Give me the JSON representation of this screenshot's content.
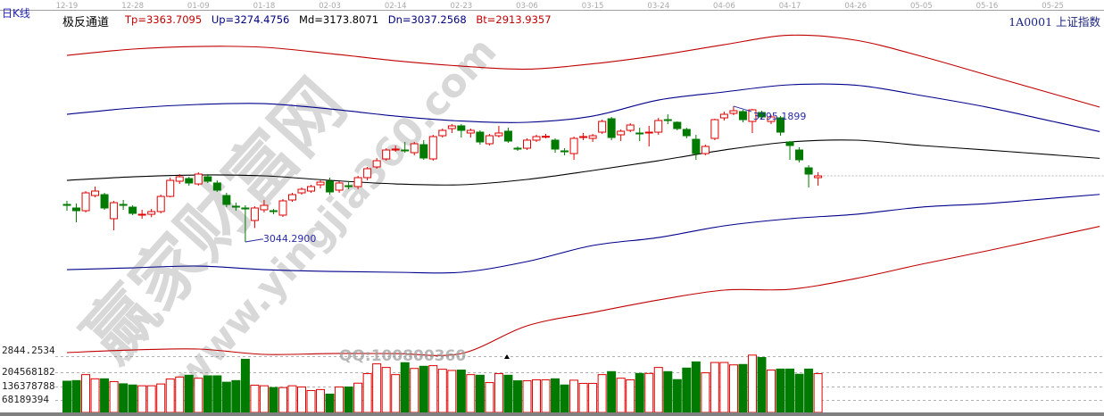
{
  "header": {
    "period": "日K线",
    "indicator_name": "极反通道",
    "indicator_values": [
      {
        "label": "Tp=3363.7095",
        "color": "#c00000"
      },
      {
        "label": "Up=3274.4756",
        "color": "#000080"
      },
      {
        "label": "Md=3173.8071",
        "color": "#000000"
      },
      {
        "label": "Dn=3037.2568",
        "color": "#000080"
      },
      {
        "label": "Bt=2913.9357",
        "color": "#c00000"
      }
    ],
    "symbol": "1A0001  上证指数"
  },
  "axis": {
    "price_bottom_label": "2844.2534",
    "volume_labels": [
      "204568182",
      "136378788",
      "68189394"
    ]
  },
  "watermark": {
    "brand": "赢家财富网",
    "url": "www.yingjia360.com",
    "qq": "QQ:100800360"
  },
  "colors": {
    "up": "#e00000",
    "down": "#007a00",
    "channel_outer": "#c00000",
    "channel_inner": "#00008b",
    "channel_mid": "#000000",
    "annotation": "#2a2aa8"
  },
  "chart_data": {
    "type": "candlestick",
    "title": "",
    "x_tick_labels": [
      "12-19",
      "12-28",
      "01-09",
      "01-18",
      "02-03",
      "02-14",
      "02-23",
      "03-06",
      "03-15",
      "03-24",
      "04-06",
      "04-17",
      "04-26",
      "05-05",
      "05-16",
      "05-25"
    ],
    "x_tick_every_bars": 7,
    "price_range": [
      2836,
      3491
    ],
    "annotations": [
      {
        "label": "3044.2900",
        "type": "low",
        "bar": 19
      },
      {
        "label": "3295.1899",
        "type": "high",
        "bar": 71
      }
    ],
    "ohlc": [
      [
        3113.6,
        3120.2,
        3102.0,
        3111.9
      ],
      [
        3107.0,
        3115.2,
        3080.6,
        3102.0
      ],
      [
        3102.0,
        3138.3,
        3098.7,
        3135.0
      ],
      [
        3130.1,
        3146.6,
        3126.8,
        3138.3
      ],
      [
        3131.7,
        3135.0,
        3103.7,
        3107.0
      ],
      [
        3087.2,
        3120.2,
        3065.7,
        3116.9
      ],
      [
        3113.6,
        3121.8,
        3103.7,
        3111.9
      ],
      [
        3108.6,
        3111.9,
        3093.8,
        3097.1
      ],
      [
        3093.8,
        3103.7,
        3087.2,
        3095.4
      ],
      [
        3095.4,
        3105.3,
        3090.0,
        3100.4
      ],
      [
        3100.4,
        3131.7,
        3097.1,
        3128.4
      ],
      [
        3128.4,
        3163.1,
        3126.8,
        3158.1
      ],
      [
        3156.5,
        3169.7,
        3151.5,
        3164.7
      ],
      [
        3161.4,
        3164.7,
        3148.2,
        3153.2
      ],
      [
        3151.5,
        3173.0,
        3148.2,
        3169.7
      ],
      [
        3164.7,
        3169.7,
        3153.2,
        3156.5
      ],
      [
        3153.2,
        3158.1,
        3136.7,
        3140.0
      ],
      [
        3130.1,
        3135.0,
        3108.6,
        3113.6
      ],
      [
        3110.3,
        3116.9,
        3102.0,
        3108.6
      ],
      [
        3107.0,
        3112.0,
        3044.3,
        3105.3
      ],
      [
        3083.9,
        3110.3,
        3070.0,
        3107.0
      ],
      [
        3103.7,
        3121.8,
        3098.7,
        3111.9
      ],
      [
        3102.0,
        3105.3,
        3095.4,
        3100.4
      ],
      [
        3093.8,
        3123.5,
        3090.5,
        3120.2
      ],
      [
        3121.8,
        3135.0,
        3118.5,
        3131.7
      ],
      [
        3135.0,
        3145.0,
        3131.7,
        3141.6
      ],
      [
        3138.3,
        3149.9,
        3135.0,
        3146.6
      ],
      [
        3149.9,
        3158.1,
        3143.3,
        3154.8
      ],
      [
        3156.5,
        3163.1,
        3131.7,
        3136.7
      ],
      [
        3140.0,
        3156.5,
        3135.0,
        3153.2
      ],
      [
        3148.2,
        3156.5,
        3141.6,
        3146.6
      ],
      [
        3146.6,
        3166.4,
        3141.6,
        3163.1
      ],
      [
        3163.1,
        3182.9,
        3158.1,
        3179.6
      ],
      [
        3182.9,
        3199.4,
        3179.6,
        3194.4
      ],
      [
        3197.7,
        3217.5,
        3194.4,
        3214.2
      ],
      [
        3214.2,
        3222.5,
        3210.9,
        3215.9
      ],
      [
        3214.2,
        3229.1,
        3209.3,
        3212.6
      ],
      [
        3209.3,
        3229.1,
        3204.3,
        3225.8
      ],
      [
        3224.1,
        3232.4,
        3196.1,
        3199.4
      ],
      [
        3197.7,
        3242.3,
        3194.4,
        3239.0
      ],
      [
        3240.6,
        3253.8,
        3237.3,
        3250.5
      ],
      [
        3253.8,
        3262.1,
        3245.6,
        3258.8
      ],
      [
        3258.8,
        3262.1,
        3237.3,
        3250.5
      ],
      [
        3245.6,
        3253.8,
        3237.3,
        3250.5
      ],
      [
        3247.2,
        3250.5,
        3224.1,
        3229.1
      ],
      [
        3225.8,
        3243.9,
        3222.5,
        3240.6
      ],
      [
        3240.6,
        3258.8,
        3237.3,
        3245.6
      ],
      [
        3248.9,
        3255.4,
        3227.4,
        3230.7
      ],
      [
        3217.5,
        3220.8,
        3212.6,
        3215.9
      ],
      [
        3217.5,
        3235.7,
        3214.2,
        3232.4
      ],
      [
        3232.4,
        3242.3,
        3229.1,
        3239.0
      ],
      [
        3239.0,
        3243.9,
        3235.7,
        3239.5
      ],
      [
        3232.4,
        3235.7,
        3209.3,
        3215.9
      ],
      [
        3212.6,
        3217.5,
        3204.3,
        3210.9
      ],
      [
        3207.6,
        3239.0,
        3196.1,
        3235.7
      ],
      [
        3237.3,
        3245.6,
        3232.4,
        3239.0
      ],
      [
        3235.7,
        3243.9,
        3229.1,
        3240.6
      ],
      [
        3247.2,
        3270.3,
        3243.9,
        3267.0
      ],
      [
        3272.0,
        3275.3,
        3232.4,
        3237.3
      ],
      [
        3242.3,
        3252.2,
        3230.7,
        3248.9
      ],
      [
        3250.5,
        3263.7,
        3247.2,
        3260.4
      ],
      [
        3245.6,
        3255.4,
        3230.7,
        3243.9
      ],
      [
        3245.6,
        3258.8,
        3220.8,
        3247.2
      ],
      [
        3247.2,
        3273.6,
        3242.3,
        3268.7
      ],
      [
        3270.3,
        3280.2,
        3262.1,
        3268.7
      ],
      [
        3265.4,
        3267.0,
        3250.5,
        3253.8
      ],
      [
        3252.2,
        3255.4,
        3235.7,
        3240.6
      ],
      [
        3234.0,
        3242.3,
        3196.1,
        3207.6
      ],
      [
        3207.6,
        3224.1,
        3204.3,
        3220.8
      ],
      [
        3235.7,
        3272.0,
        3232.4,
        3270.3
      ],
      [
        3273.6,
        3285.2,
        3268.7,
        3280.2
      ],
      [
        3281.9,
        3295.2,
        3278.6,
        3286.8
      ],
      [
        3285.2,
        3288.5,
        3265.4,
        3270.3
      ],
      [
        3267.0,
        3290.1,
        3245.6,
        3288.5
      ],
      [
        3283.5,
        3286.8,
        3270.3,
        3275.3
      ],
      [
        3267.0,
        3278.6,
        3262.1,
        3275.3
      ],
      [
        3273.6,
        3276.9,
        3240.6,
        3247.2
      ],
      [
        3229.1,
        3230.7,
        3196.1,
        3222.5
      ],
      [
        3214.2,
        3219.2,
        3191.1,
        3196.1
      ],
      [
        3181.2,
        3186.2,
        3144.9,
        3169.7
      ],
      [
        3163.1,
        3173.0,
        3148.2,
        3166.4
      ]
    ],
    "volume": [
      157000000,
      160000000,
      190000000,
      169000000,
      169000000,
      155000000,
      144000000,
      138000000,
      134000000,
      134000000,
      143000000,
      168000000,
      178000000,
      187000000,
      172000000,
      184000000,
      184000000,
      152000000,
      160000000,
      267000000,
      137000000,
      134000000,
      125000000,
      125000000,
      134000000,
      128000000,
      110000000,
      115000000,
      92000000,
      128000000,
      128000000,
      147000000,
      195000000,
      244000000,
      226000000,
      190000000,
      250000000,
      221000000,
      232000000,
      235000000,
      217000000,
      211000000,
      213000000,
      190000000,
      187000000,
      150000000,
      195000000,
      187000000,
      159000000,
      159000000,
      164000000,
      164000000,
      169000000,
      138000000,
      162000000,
      146000000,
      146000000,
      190000000,
      205000000,
      172000000,
      164000000,
      196000000,
      196000000,
      226000000,
      205000000,
      165000000,
      223000000,
      254000000,
      199000000,
      251000000,
      251000000,
      239000000,
      241000000,
      288000000,
      276000000,
      213000000,
      218000000,
      218000000,
      192000000,
      218000000,
      195000000
    ],
    "volume_range": [
      0,
      272757576
    ],
    "channel": {
      "sampled_at": "x_tick_labels",
      "Tp": [
        3389.1,
        3400.7,
        3405.6,
        3404.0,
        3392.4,
        3379.2,
        3369.3,
        3363.6,
        3373.5,
        3389.1,
        3408.9,
        3426.3,
        3417.2,
        3387.5,
        3352.8,
        3318.2
      ],
      "Up": [
        3280.2,
        3291.8,
        3298.4,
        3300.0,
        3290.1,
        3276.9,
        3267.7,
        3265.4,
        3276.9,
        3306.6,
        3321.5,
        3334.7,
        3333.9,
        3314.9,
        3293.4,
        3267.0
      ],
      "Md": [
        3158.1,
        3164.7,
        3168.0,
        3166.4,
        3158.1,
        3151.5,
        3149.9,
        3159.8,
        3176.3,
        3194.4,
        3214.2,
        3229.1,
        3232.4,
        3222.5,
        3214.2,
        3205.2
      ],
      "Dn": [
        2993.1,
        2996.4,
        2999.7,
        2993.1,
        2989.8,
        2988.2,
        2988.2,
        3008.0,
        3037.7,
        3052.5,
        3074.0,
        3087.2,
        3095.4,
        3108.6,
        3115.2,
        3125.1
      ],
      "Bt": [
        2839.7,
        2844.6,
        2846.3,
        2836.4,
        2838.0,
        2838.0,
        2838.0,
        2889.2,
        2913.9,
        2937.0,
        2955.2,
        2956.8,
        2976.6,
        3003.0,
        3027.8,
        3054.2
      ]
    }
  }
}
